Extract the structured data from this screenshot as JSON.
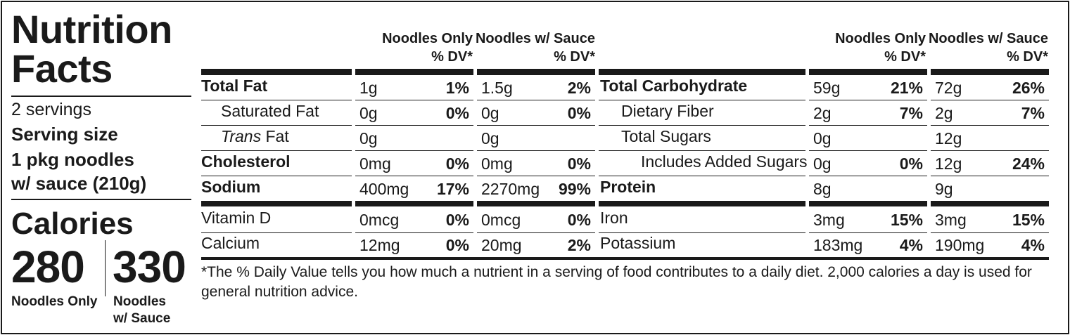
{
  "title_line1": "Nutrition",
  "title_line2": "Facts",
  "servings": "2 servings",
  "serving_size_label": "Serving size",
  "serving_size_line1": "1 pkg noodles",
  "serving_size_line2": "w/ sauce (210g)",
  "calories_label": "Calories",
  "calories": [
    {
      "value": "280",
      "label_line1": "Noodles Only",
      "label_line2": ""
    },
    {
      "value": "330",
      "label_line1": "Noodles",
      "label_line2": "w/ Sauce"
    }
  ],
  "column_headers": {
    "col1_line1": "Noodles Only",
    "col1_line2": "% DV*",
    "col2_line1": "Noodles w/ Sauce",
    "col2_line2": "% DV*"
  },
  "left_rows": [
    {
      "name": "Total Fat",
      "amt1": "1g",
      "dv1": "1%",
      "amt2": "1.5g",
      "dv2": "2%"
    },
    {
      "name": "Saturated Fat",
      "amt1": "0g",
      "dv1": "0%",
      "amt2": "0g",
      "dv2": "0%"
    },
    {
      "name_italic": "Trans",
      "name": " Fat",
      "amt1": "0g",
      "dv1": "",
      "amt2": "0g",
      "dv2": ""
    },
    {
      "name": "Cholesterol",
      "amt1": "0mg",
      "dv1": "0%",
      "amt2": "0mg",
      "dv2": "0%"
    },
    {
      "name": "Sodium",
      "amt1": "400mg",
      "dv1": "17%",
      "amt2": "2270mg",
      "dv2": "99%"
    },
    {
      "name": "Vitamin D",
      "amt1": "0mcg",
      "dv1": "0%",
      "amt2": "0mcg",
      "dv2": "0%"
    },
    {
      "name": "Calcium",
      "amt1": "12mg",
      "dv1": "0%",
      "amt2": "20mg",
      "dv2": "2%"
    }
  ],
  "right_rows": [
    {
      "name": "Total Carbohydrate",
      "amt1": "59g",
      "dv1": "21%",
      "amt2": "72g",
      "dv2": "26%"
    },
    {
      "name": "Dietary Fiber",
      "amt1": "2g",
      "dv1": "7%",
      "amt2": "2g",
      "dv2": "7%"
    },
    {
      "name": "Total Sugars",
      "amt1": "0g",
      "dv1": "",
      "amt2": "12g",
      "dv2": ""
    },
    {
      "name": "Includes Added Sugars",
      "amt1": "0g",
      "dv1": "0%",
      "amt2": "12g",
      "dv2": "24%"
    },
    {
      "name": "Protein",
      "amt1": "8g",
      "dv1": "",
      "amt2": "9g",
      "dv2": ""
    },
    {
      "name": "Iron",
      "amt1": "3mg",
      "dv1": "15%",
      "amt2": "3mg",
      "dv2": "15%"
    },
    {
      "name": "Potassium",
      "amt1": "183mg",
      "dv1": "4%",
      "amt2": "190mg",
      "dv2": "4%"
    }
  ],
  "footnote": "*The % Daily Value tells you how much a nutrient in a serving of food contributes to a daily diet. 2,000 calories a day is used for general nutrition advice."
}
